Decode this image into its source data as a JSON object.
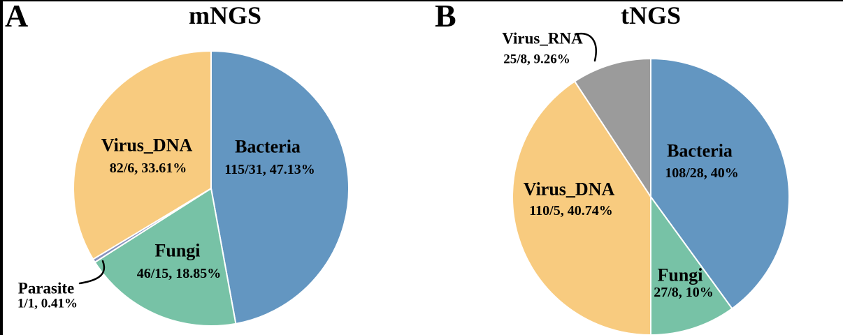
{
  "chart_data": [
    {
      "type": "pie",
      "panel": "A",
      "title": "mNGS",
      "direction": "clockwise",
      "start_angle": "12 o'clock",
      "slices": [
        {
          "label": "Bacteria",
          "ratio": "115/31",
          "percent": 47.13,
          "percent_label": "47.13%",
          "annotation": "115/31, 47.13%",
          "color": "#6396c1",
          "label_outside": false
        },
        {
          "label": "Fungi",
          "ratio": "46/15",
          "percent": 18.85,
          "percent_label": "18.85%",
          "annotation": "46/15, 18.85%",
          "color": "#77c2a6",
          "label_outside": false
        },
        {
          "label": "Parasite",
          "ratio": "1/1",
          "percent": 0.41,
          "percent_label": "0.41%",
          "annotation": "1/1, 0.41%",
          "color": "#8792bd",
          "label_outside": true
        },
        {
          "label": "Virus_DNA",
          "ratio": "82/6",
          "percent": 33.61,
          "percent_label": "33.61%",
          "annotation": "82/6, 33.61%",
          "color": "#f8cb7f",
          "label_outside": false
        }
      ]
    },
    {
      "type": "pie",
      "panel": "B",
      "title": "tNGS",
      "direction": "clockwise",
      "start_angle": "12 o'clock",
      "slices": [
        {
          "label": "Bacteria",
          "ratio": "108/28",
          "percent": 40.0,
          "percent_label": "40%",
          "annotation": "108/28, 40%",
          "color": "#6396c1",
          "label_outside": false
        },
        {
          "label": "Fungi",
          "ratio": "27/8",
          "percent": 10.0,
          "percent_label": "10%",
          "annotation": "27/8, 10%",
          "color": "#77c2a6",
          "label_outside": false
        },
        {
          "label": "Virus_DNA",
          "ratio": "110/5",
          "percent": 40.74,
          "percent_label": "40.74%",
          "annotation": "110/5, 40.74%",
          "color": "#f8cb7f",
          "label_outside": false
        },
        {
          "label": "Virus_RNA",
          "ratio": "25/8",
          "percent": 9.26,
          "percent_label": "9.26%",
          "annotation": "25/8, 9.26%",
          "color": "#9b9b9b",
          "label_outside": true
        }
      ]
    }
  ]
}
